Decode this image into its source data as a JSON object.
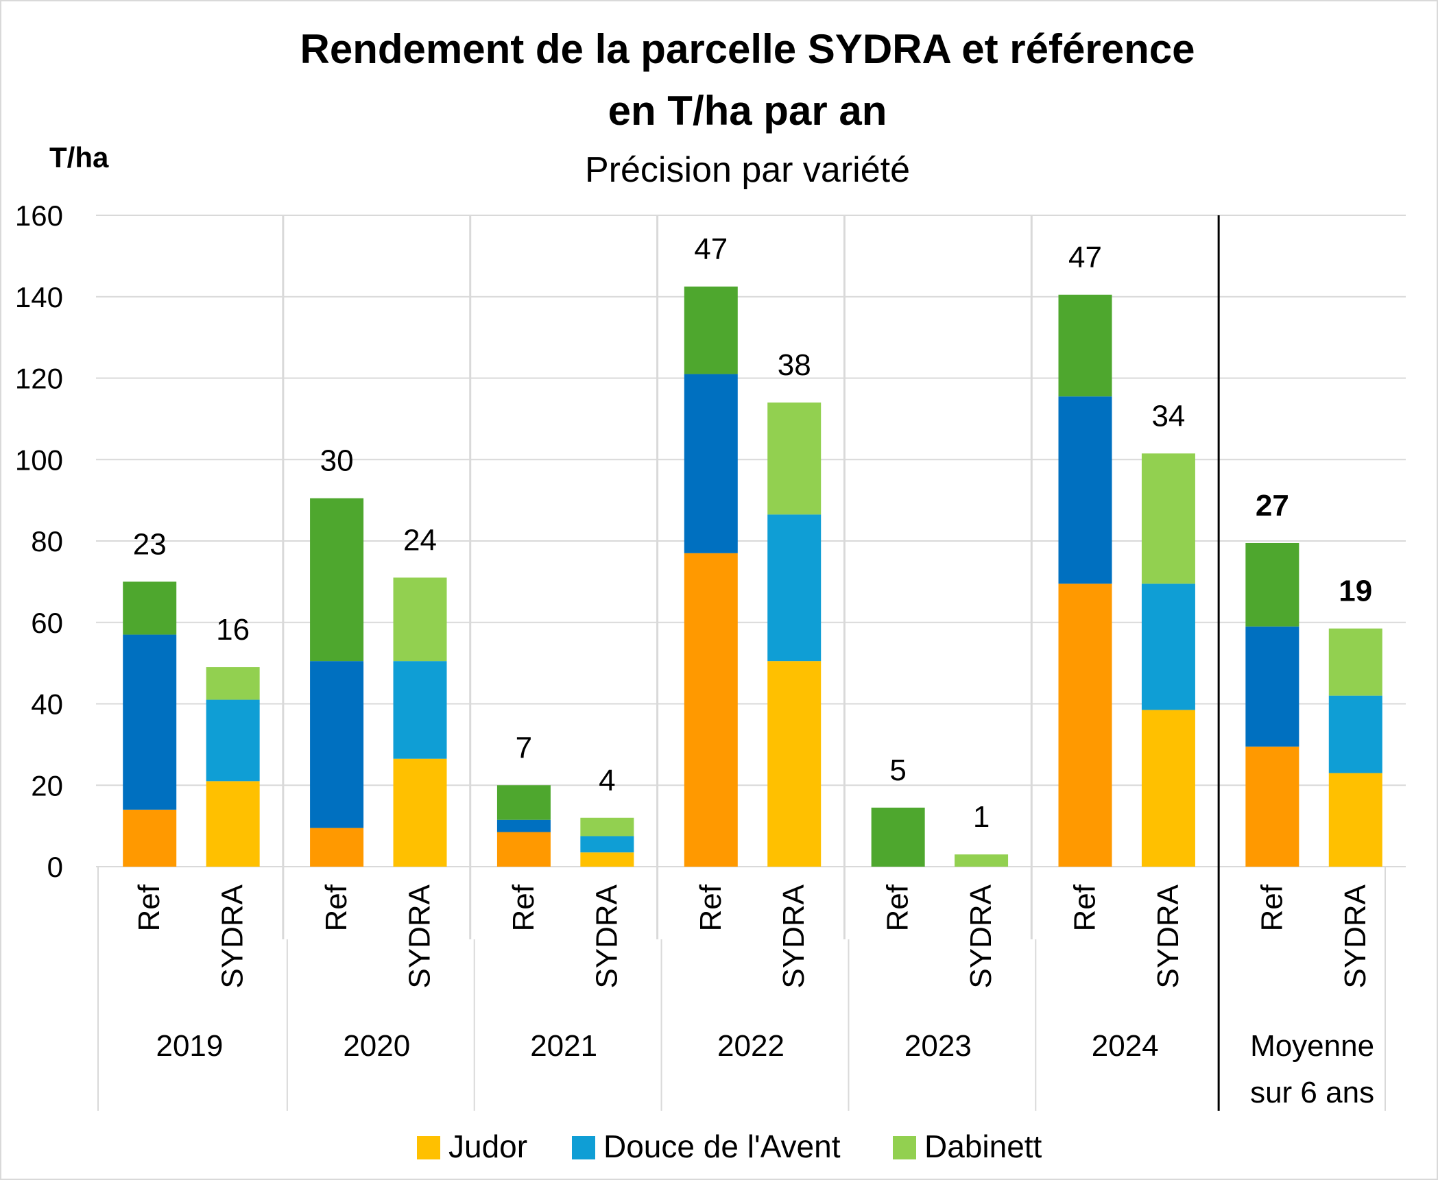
{
  "chart_data": {
    "type": "bar",
    "stacked": true,
    "title": "Rendement de la parcelle SYDRA et référence",
    "title_line2": "en T/ha par an",
    "subtitle": "Précision par variété",
    "ylabel": "T/ha",
    "ylim": [
      0,
      160
    ],
    "yticks": [
      0,
      20,
      40,
      60,
      80,
      100,
      120,
      140,
      160
    ],
    "grid": true,
    "legend_position": "bottom",
    "groups": [
      {
        "label": "2019",
        "bars": [
          {
            "label": "Ref",
            "segments": [
              14,
              43,
              13
            ],
            "top_label": "23",
            "bold": false
          },
          {
            "label": "SYDRA",
            "segments": [
              21,
              20,
              8
            ],
            "top_label": "16",
            "bold": false
          }
        ]
      },
      {
        "label": "2020",
        "bars": [
          {
            "label": "Ref",
            "segments": [
              9.5,
              41,
              40
            ],
            "top_label": "30",
            "bold": false
          },
          {
            "label": "SYDRA",
            "segments": [
              26.5,
              24,
              20.5
            ],
            "top_label": "24",
            "bold": false
          }
        ]
      },
      {
        "label": "2021",
        "bars": [
          {
            "label": "Ref",
            "segments": [
              8.5,
              3,
              8.5
            ],
            "top_label": "7",
            "bold": false
          },
          {
            "label": "SYDRA",
            "segments": [
              3.5,
              4,
              4.5
            ],
            "top_label": "4",
            "bold": false
          }
        ]
      },
      {
        "label": "2022",
        "bars": [
          {
            "label": "Ref",
            "segments": [
              77,
              44,
              21.5
            ],
            "top_label": "47",
            "bold": false
          },
          {
            "label": "SYDRA",
            "segments": [
              50.5,
              36,
              27.5
            ],
            "top_label": "38",
            "bold": false
          }
        ]
      },
      {
        "label": "2023",
        "bars": [
          {
            "label": "Ref",
            "segments": [
              0,
              0,
              14.5
            ],
            "top_label": "5",
            "bold": false
          },
          {
            "label": "SYDRA",
            "segments": [
              0,
              0,
              3
            ],
            "top_label": "1",
            "bold": false
          }
        ]
      },
      {
        "label": "2024",
        "bars": [
          {
            "label": "Ref",
            "segments": [
              69.5,
              46,
              25
            ],
            "top_label": "47",
            "bold": false
          },
          {
            "label": "SYDRA",
            "segments": [
              38.5,
              31,
              32
            ],
            "top_label": "34",
            "bold": false
          }
        ]
      },
      {
        "label": "Moyenne sur 6 ans",
        "label_lines": [
          "Moyenne",
          "sur 6 ans"
        ],
        "bars": [
          {
            "label": "Ref",
            "segments": [
              29.5,
              29.5,
              20.5
            ],
            "top_label": "27",
            "bold": true
          },
          {
            "label": "SYDRA",
            "segments": [
              23,
              19,
              16.5
            ],
            "top_label": "19",
            "bold": true
          }
        ]
      }
    ],
    "colors": {
      "Ref": [
        "#ff9900",
        "#0070c0",
        "#4ea72e"
      ],
      "SYDRA": [
        "#ffc000",
        "#0f9ed5",
        "#92d050"
      ]
    },
    "legend": [
      {
        "name": "Judor",
        "color": "#ffc000"
      },
      {
        "name": "Douce de l'Avent",
        "color": "#0f9ed5"
      },
      {
        "name": "Dabinett",
        "color": "#92d050"
      }
    ],
    "axis_color": "#d9d9d9",
    "separator_color": "#000000"
  }
}
